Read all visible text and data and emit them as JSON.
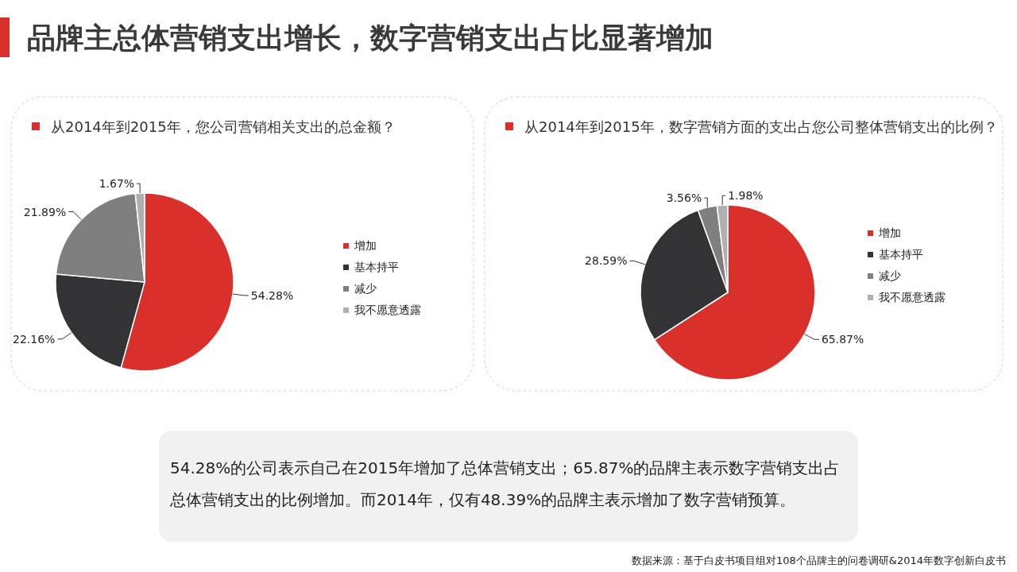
{
  "chart_data": [
    {
      "type": "other",
      "title": "品牌主总体营销支出增长，数字营销支出占比显著增加"
    },
    {
      "type": "pie",
      "title": "从2014年到2015年，您公司营销相关支出的总金额？",
      "categories": [
        "增加",
        "基本持平",
        "减少",
        "我不愿意透露"
      ],
      "values": [
        54.28,
        22.16,
        21.89,
        1.67
      ],
      "value_labels": [
        "54.28%",
        "22.16%",
        "21.89%",
        "1.67%"
      ],
      "colors": [
        "#d9302b",
        "#333335",
        "#7f7f7f",
        "#b0b0b0"
      ],
      "legend": "right"
    },
    {
      "type": "pie",
      "title": "从2014年到2015年，数字营销方面的支出占您公司整体营销支出的比例？",
      "categories": [
        "增加",
        "基本持平",
        "减少",
        "我不愿意透露"
      ],
      "values": [
        65.87,
        28.59,
        3.56,
        1.98
      ],
      "value_labels": [
        "65.87%",
        "28.59%",
        "3.56%",
        "1.98%"
      ],
      "colors": [
        "#d9302b",
        "#333335",
        "#7f7f7f",
        "#b0b0b0"
      ],
      "legend": "right"
    },
    {
      "type": "other",
      "annotations": [
        "54.28%的公司表示自己在2015年增加了总体营销支出；65.87%的品牌主表示数字营销支出占总体营销支出的比例增加。而2014年，仅有48.39%的品牌主表示增加了数字营销预算。",
        "数据来源：基于白皮书项目组对108个品牌主的问卷调研&2014年数字创新白皮书"
      ]
    }
  ]
}
